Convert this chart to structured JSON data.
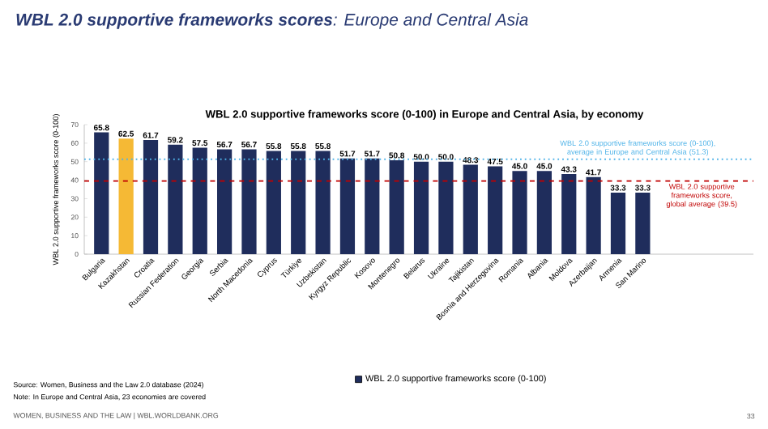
{
  "chart_data": {
    "type": "bar",
    "title": "**WBL 2.0 supportive frameworks scores**: Europe and Central Asia",
    "subtitle": "WBL 2.0 supportive frameworks score (0-100) in Europe and Central Asia, by economy",
    "ylabel": "WBL 2.0 supportive frameworks score (0-100)",
    "categories": [
      "Bulgaria",
      "Kazakhstan",
      "Croatia",
      "Russian Federation",
      "Georgia",
      "Serbia",
      "North Macedonia",
      "Cyprus",
      "Türkiye",
      "Uzbekistan",
      "Kyrgyz Republic",
      "Kosovo",
      "Montenegro",
      "Belarus",
      "Ukraine",
      "Tajikistan",
      "Bosnia and Herzegovina",
      "Romania",
      "Albania",
      "Moldova",
      "Azerbaijan",
      "Armenia",
      "San Marino"
    ],
    "series": [
      {
        "name": "WBL 2.0 supportive frameworks score (0-100)",
        "color": "#1f2d5c",
        "colors": [
          "#1f2d5c",
          "#f5b935",
          "#1f2d5c",
          "#1f2d5c",
          "#1f2d5c",
          "#1f2d5c",
          "#1f2d5c",
          "#1f2d5c",
          "#1f2d5c",
          "#1f2d5c",
          "#1f2d5c",
          "#1f2d5c",
          "#1f2d5c",
          "#1f2d5c",
          "#1f2d5c",
          "#1f2d5c",
          "#1f2d5c",
          "#1f2d5c",
          "#1f2d5c",
          "#1f2d5c",
          "#1f2d5c",
          "#1f2d5c",
          "#1f2d5c"
        ],
        "values": [
          65.8,
          62.5,
          61.7,
          59.2,
          57.5,
          56.7,
          56.7,
          55.8,
          55.8,
          55.8,
          51.7,
          51.7,
          50.8,
          50.0,
          50.0,
          48.3,
          47.5,
          45.0,
          45.0,
          43.3,
          41.7,
          33.3,
          33.3
        ],
        "value_labels": [
          "65.8",
          "62.5",
          "61.7",
          "59.2",
          "57.5",
          "56.7",
          "56.7",
          "55.8",
          "55.8",
          "55.8",
          "51.7",
          "51.7",
          "50.8",
          "50.0",
          "50.0",
          "48.3",
          "47.5",
          "45.0",
          "45.0",
          "43.3",
          "41.7",
          "33.3",
          "33.3"
        ]
      }
    ],
    "ylim": [
      0,
      70
    ],
    "yticks": [
      0,
      10,
      20,
      30,
      40,
      50,
      60,
      70
    ],
    "legend": "bottom",
    "ref_lines": [
      {
        "axis": "y",
        "value": 51.3,
        "label": "WBL 2.0 supportive frameworks score (0-100), average in Europe and Central Asia (51.3)",
        "color": "#4fb3e8",
        "line_style": "dotted"
      },
      {
        "axis": "y",
        "value": 39.5,
        "label": "WBL 2.0 supportive frameworks score, global average (39.5)",
        "color": "#c00000",
        "line_style": "dashed"
      }
    ],
    "annotations": [
      "Source: Women, Business and the Law 2.0 database (2024)",
      "Note: In Europe and Central Asia, 23 economies are covered",
      "WOMEN, BUSINESS AND THE LAW | WBL.WORLDBANK.ORG",
      "33"
    ]
  }
}
